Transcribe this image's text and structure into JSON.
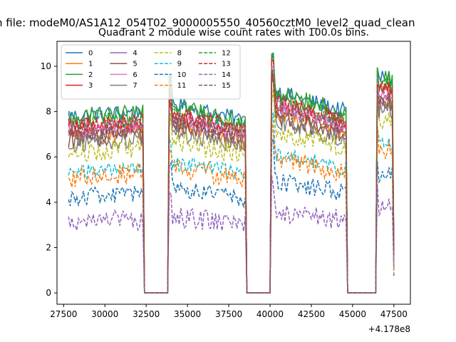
{
  "figure": {
    "suptitle": "n file: modeM0/AS1A12_054T02_9000005550_40560cztM0_level2_quad_clean",
    "title": "Quadrant 2 module wise count rates with 100.0s bins.",
    "x_offset_label": "+4.178e8"
  },
  "chart_data": {
    "type": "line",
    "title": "Quadrant 2 module wise count rates with 100.0s bins.",
    "xlabel": "",
    "ylabel": "",
    "x_offset": 417800000,
    "xlim": [
      27100,
      48500
    ],
    "ylim": [
      -0.5,
      11.1
    ],
    "xticks": [
      27500,
      30000,
      32500,
      35000,
      37500,
      40000,
      42500,
      45000,
      47500
    ],
    "xtick_labels": [
      "27500",
      "30000",
      "32500",
      "35000",
      "37500",
      "40000",
      "42500",
      "45000",
      "47500"
    ],
    "yticks": [
      0,
      2,
      4,
      6,
      8,
      10
    ],
    "ytick_labels": [
      "0",
      "2",
      "4",
      "6",
      "8",
      "10"
    ],
    "grid": false,
    "legend": {
      "placement": "top-left",
      "columns": 4
    },
    "bin_seconds": 100,
    "segments": [
      {
        "start": 27800,
        "end": 32300
      },
      {
        "start": 33900,
        "end": 38500
      },
      {
        "start": 40100,
        "end": 44600
      },
      {
        "start": 46500,
        "end": 47500
      }
    ],
    "gaps_at_zero": [
      {
        "start": 32400,
        "end": 33800
      },
      {
        "start": 38600,
        "end": 40000
      },
      {
        "start": 44700,
        "end": 46400
      }
    ],
    "series": [
      {
        "name": "0",
        "color": "#1f77b4",
        "style": "solid",
        "level": 8.0
      },
      {
        "name": "1",
        "color": "#ff7f0e",
        "style": "solid",
        "level": 7.1
      },
      {
        "name": "2",
        "color": "#2ca02c",
        "style": "solid",
        "level": 7.9
      },
      {
        "name": "3",
        "color": "#d62728",
        "style": "solid",
        "level": 7.6
      },
      {
        "name": "4",
        "color": "#9467bd",
        "style": "solid",
        "level": 7.3
      },
      {
        "name": "5",
        "color": "#8c564b",
        "style": "solid",
        "level": 7.0
      },
      {
        "name": "6",
        "color": "#e377c2",
        "style": "solid",
        "level": 7.4
      },
      {
        "name": "7",
        "color": "#7f7f7f",
        "style": "solid",
        "level": 6.8
      },
      {
        "name": "8",
        "color": "#bcbd22",
        "style": "dashed",
        "level": 6.4
      },
      {
        "name": "9",
        "color": "#17becf",
        "style": "dashed",
        "level": 5.5
      },
      {
        "name": "10",
        "color": "#1f77b4",
        "style": "dashed",
        "level": 4.4
      },
      {
        "name": "11",
        "color": "#ff7f0e",
        "style": "dashed",
        "level": 5.3
      },
      {
        "name": "12",
        "color": "#2ca02c",
        "style": "dashed",
        "level": 7.7
      },
      {
        "name": "13",
        "color": "#d62728",
        "style": "dashed",
        "level": 7.5
      },
      {
        "name": "14",
        "color": "#9467bd",
        "style": "dashed",
        "level": 3.2
      },
      {
        "name": "15",
        "color": "#8c564b",
        "style": "dashed",
        "level": 7.2
      }
    ]
  }
}
